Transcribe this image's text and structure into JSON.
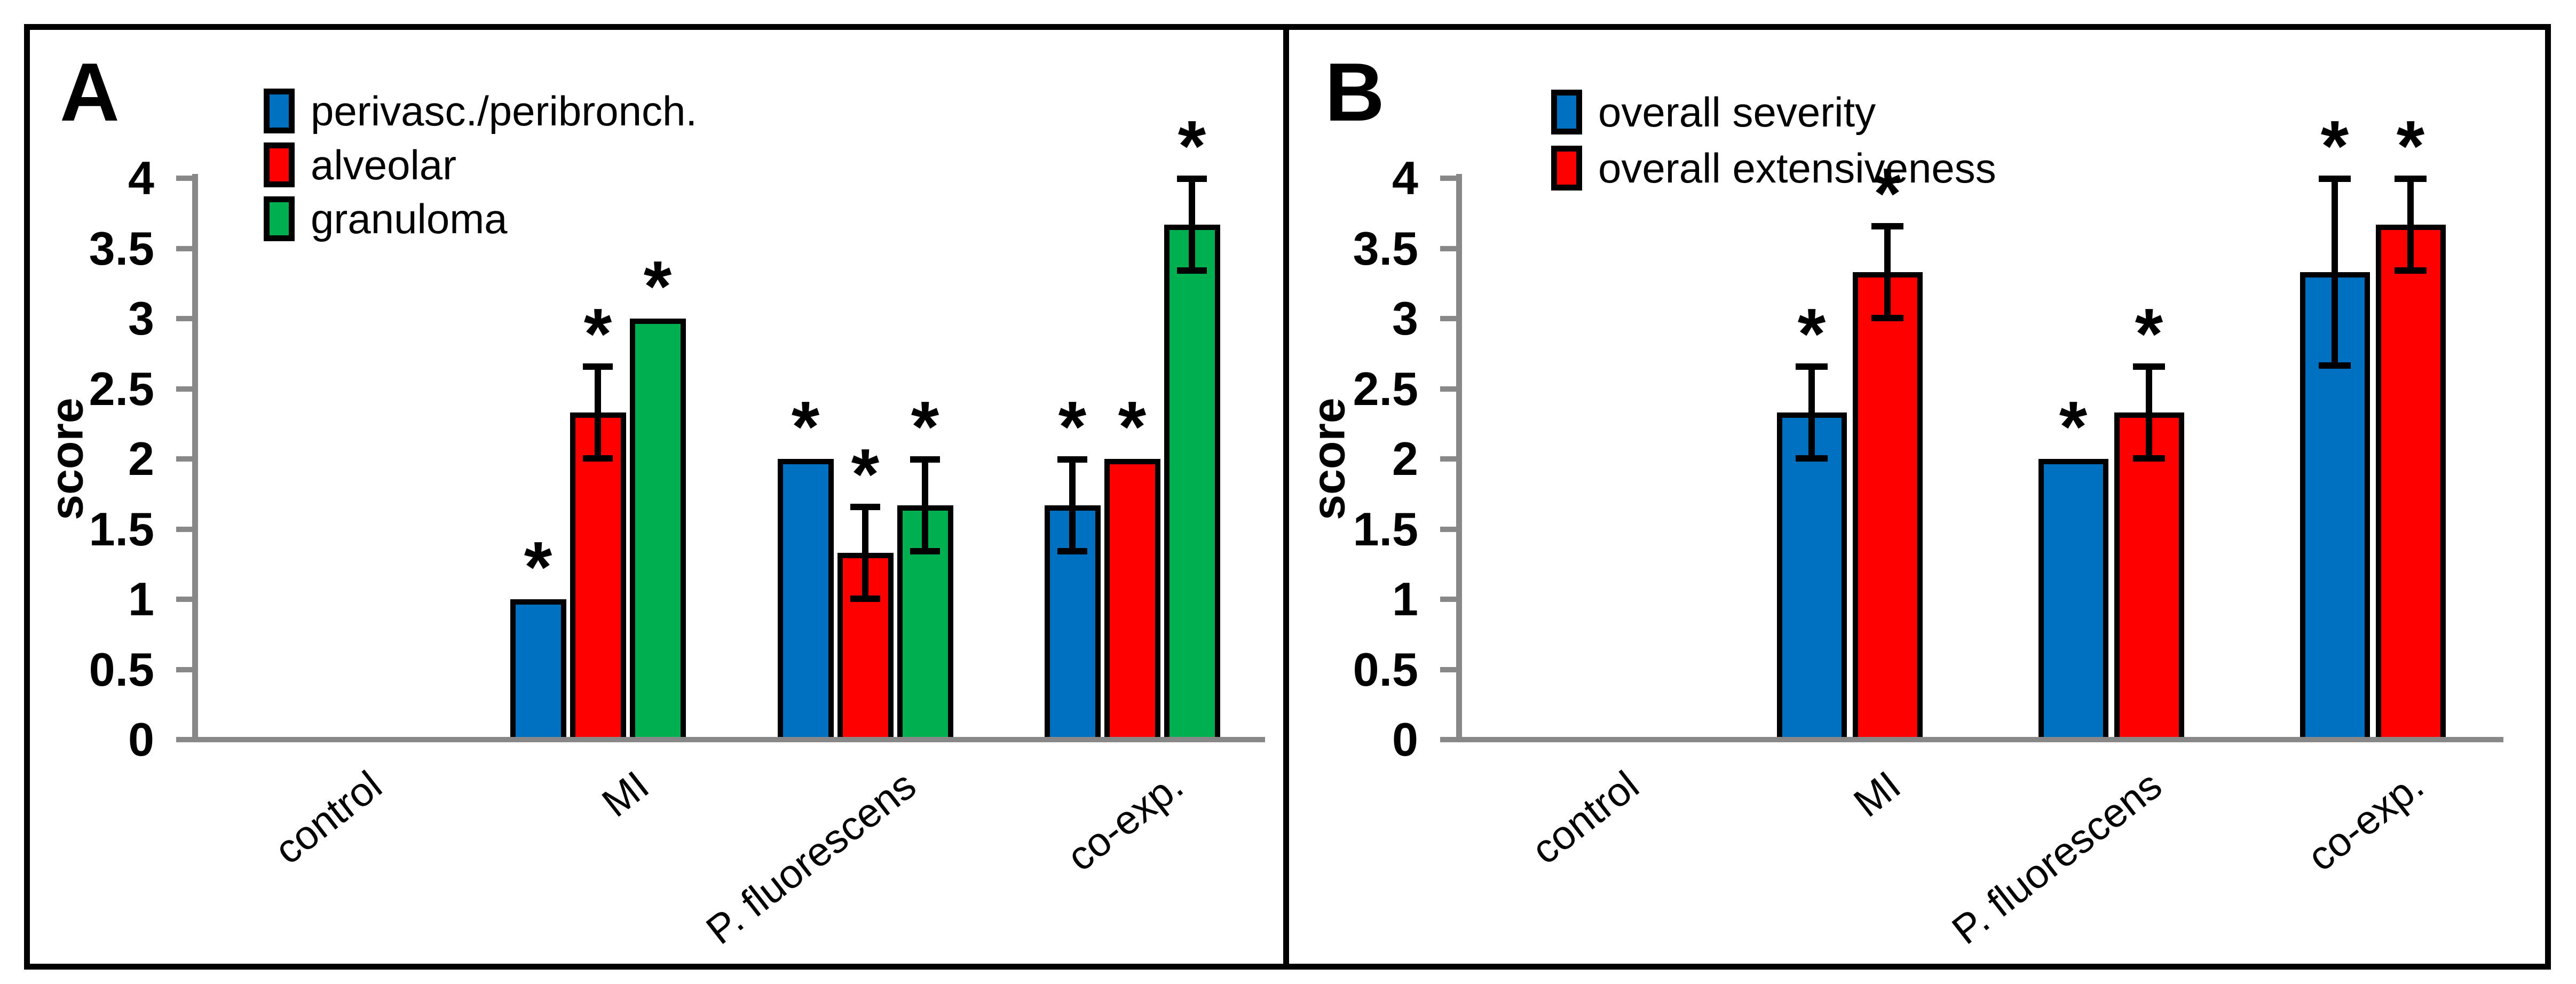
{
  "figure": {
    "background": "#FFFFFF",
    "border_color": "#000000",
    "divider_color": "#000000",
    "axis_color": "#888888",
    "text_color": "#000000"
  },
  "chart_data": [
    {
      "type": "bar",
      "panel_label": "A",
      "title": "",
      "ylabel": "score",
      "xlabel": "",
      "ylim": [
        0,
        4
      ],
      "ytick_step": 0.5,
      "yticks": [
        "0",
        "0.5",
        "1",
        "1.5",
        "2",
        "2.5",
        "3",
        "3.5",
        "4"
      ],
      "categories": [
        "control",
        "MI",
        "P. fluorescens",
        "co-exp."
      ],
      "legend_position": "inside-top-left",
      "grid": false,
      "significance_marker": "*",
      "series": [
        {
          "name": "perivasc./peribronch.",
          "color": "#0070C0",
          "values": [
            0,
            1,
            2,
            1.67
          ],
          "errors": [
            0,
            0,
            0,
            0.33
          ],
          "significant": [
            false,
            true,
            true,
            true
          ]
        },
        {
          "name": "alveolar",
          "color": "#FF0000",
          "values": [
            0,
            2.33,
            1.33,
            2
          ],
          "errors": [
            0,
            0.33,
            0.33,
            0
          ],
          "significant": [
            false,
            true,
            true,
            true
          ]
        },
        {
          "name": "granuloma",
          "color": "#00B050",
          "values": [
            0,
            3,
            1.67,
            3.67
          ],
          "errors": [
            0,
            0,
            0.33,
            0.33
          ],
          "significant": [
            false,
            true,
            true,
            true
          ]
        }
      ]
    },
    {
      "type": "bar",
      "panel_label": "B",
      "title": "",
      "ylabel": "score",
      "xlabel": "",
      "ylim": [
        0,
        4
      ],
      "ytick_step": 0.5,
      "yticks": [
        "0",
        "0.5",
        "1",
        "1.5",
        "2",
        "2.5",
        "3",
        "3.5",
        "4"
      ],
      "categories": [
        "control",
        "MI",
        "P. fluorescens",
        "co-exp."
      ],
      "legend_position": "inside-top-left",
      "grid": false,
      "significance_marker": "*",
      "series": [
        {
          "name": "overall severity",
          "color": "#0070C0",
          "values": [
            0,
            2.33,
            2,
            3.33
          ],
          "errors": [
            0,
            0.33,
            0,
            0.67
          ],
          "significant": [
            false,
            true,
            true,
            true
          ]
        },
        {
          "name": "overall extensiveness",
          "color": "#FF0000",
          "values": [
            0,
            3.33,
            2.33,
            3.67
          ],
          "errors": [
            0,
            0.33,
            0.33,
            0.33
          ],
          "significant": [
            false,
            true,
            true,
            true
          ]
        }
      ]
    }
  ]
}
